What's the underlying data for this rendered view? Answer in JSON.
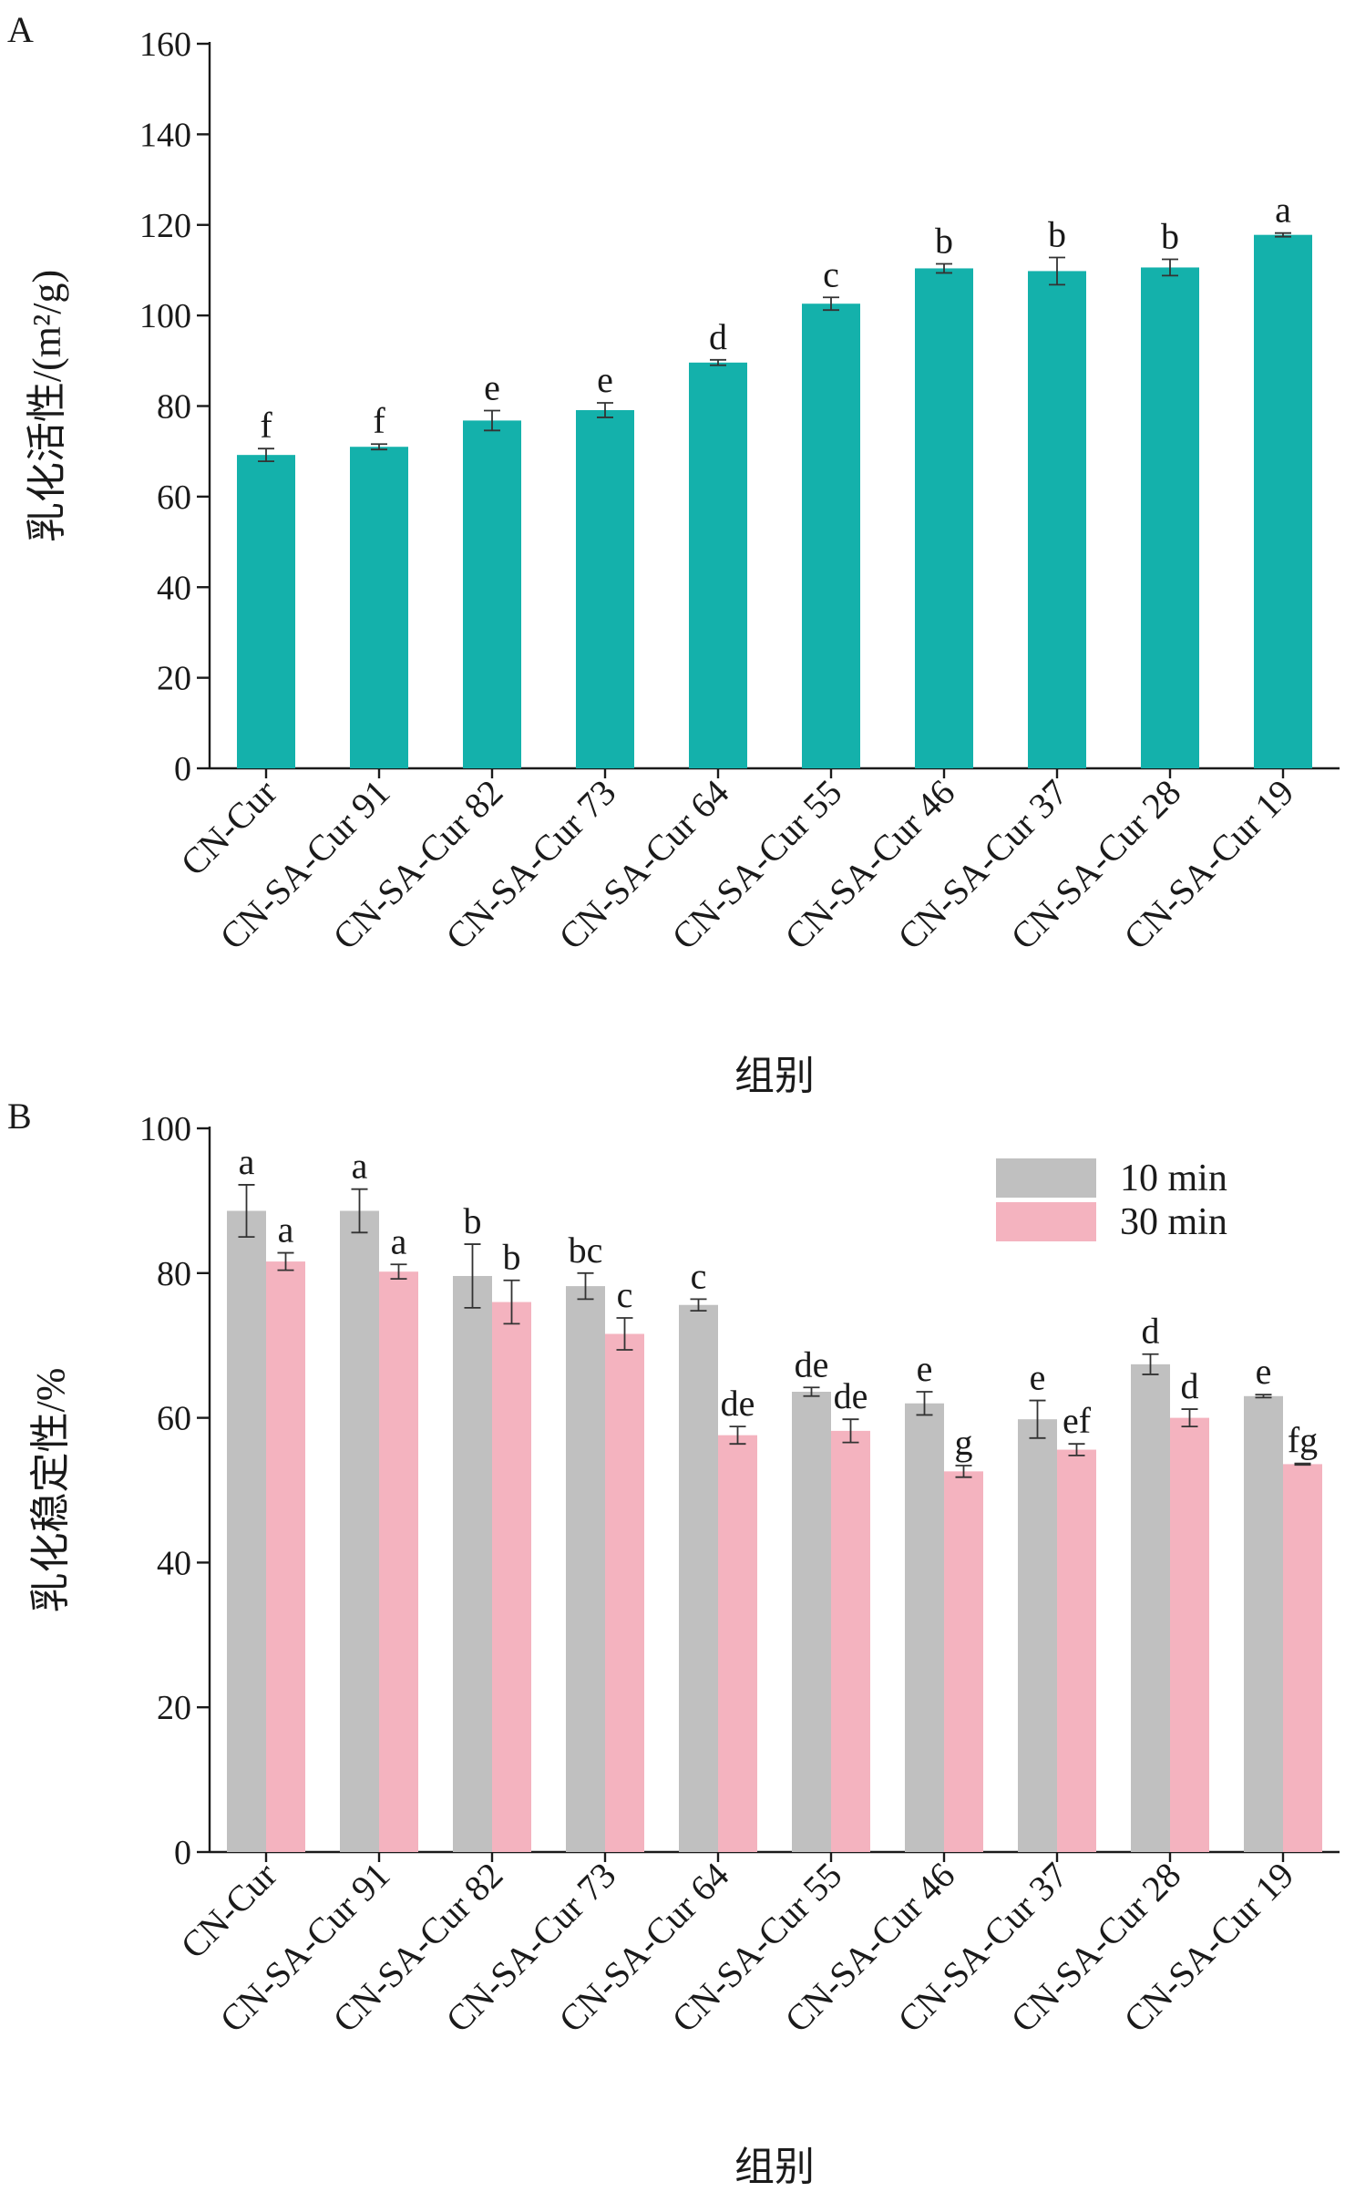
{
  "panels": {
    "a": {
      "label": "A"
    },
    "b": {
      "label": "B"
    }
  },
  "chart_data": [
    {
      "type": "bar",
      "panel": "A",
      "title": "",
      "ylabel": "乳化活性/(m²/g)",
      "xlabel": "组别",
      "ylim": [
        0,
        160
      ],
      "yticks": [
        0,
        20,
        40,
        60,
        80,
        100,
        120,
        140,
        160
      ],
      "categories": [
        "CN-Cur",
        "CN-SA-Cur 91",
        "CN-SA-Cur 82",
        "CN-SA-Cur 73",
        "CN-SA-Cur 64",
        "CN-SA-Cur 55",
        "CN-SA-Cur 46",
        "CN-SA-Cur 37",
        "CN-SA-Cur 28",
        "CN-SA-Cur 19"
      ],
      "series": [
        {
          "color": "#14b1ab",
          "values": [
            69.2,
            71.0,
            76.8,
            79.1,
            89.6,
            102.6,
            110.4,
            109.8,
            110.6,
            117.8
          ],
          "errors": [
            1.4,
            0.6,
            2.2,
            1.6,
            0.6,
            1.4,
            1.0,
            3.0,
            1.8,
            0.4
          ],
          "letters": [
            "f",
            "f",
            "e",
            "e",
            "d",
            "c",
            "b",
            "b",
            "b",
            "a"
          ]
        }
      ],
      "grid": false
    },
    {
      "type": "bar",
      "panel": "B",
      "title": "",
      "ylabel": "乳化稳定性/%",
      "xlabel": "组别",
      "ylim": [
        0,
        100
      ],
      "yticks": [
        0,
        20,
        40,
        60,
        80,
        100
      ],
      "categories": [
        "CN-Cur",
        "CN-SA-Cur 91",
        "CN-SA-Cur 82",
        "CN-SA-Cur 73",
        "CN-SA-Cur 64",
        "CN-SA-Cur 55",
        "CN-SA-Cur 46",
        "CN-SA-Cur 37",
        "CN-SA-Cur 28",
        "CN-SA-Cur 19"
      ],
      "legend_position": "top-right",
      "series": [
        {
          "name": "10 min",
          "color": "#c0c0c0",
          "values": [
            88.6,
            88.6,
            79.6,
            78.2,
            75.6,
            63.6,
            62.0,
            59.8,
            67.4,
            63.0
          ],
          "errors": [
            3.6,
            3.0,
            4.4,
            1.8,
            0.8,
            0.6,
            1.6,
            2.6,
            1.4,
            0.2
          ],
          "letters": [
            "a",
            "a",
            "b",
            "bc",
            "c",
            "de",
            "e",
            "e",
            "d",
            "e"
          ]
        },
        {
          "name": "30 min",
          "color": "#f4b3bf",
          "values": [
            81.6,
            80.2,
            76.0,
            71.6,
            57.6,
            58.2,
            52.6,
            55.6,
            60.0,
            53.6
          ],
          "errors": [
            1.2,
            1.0,
            3.0,
            2.2,
            1.2,
            1.6,
            0.8,
            0.8,
            1.2,
            0.1
          ],
          "letters": [
            "a",
            "a",
            "b",
            "c",
            "de",
            "de",
            "g",
            "ef",
            "d",
            "fg"
          ]
        }
      ],
      "grid": false
    }
  ]
}
